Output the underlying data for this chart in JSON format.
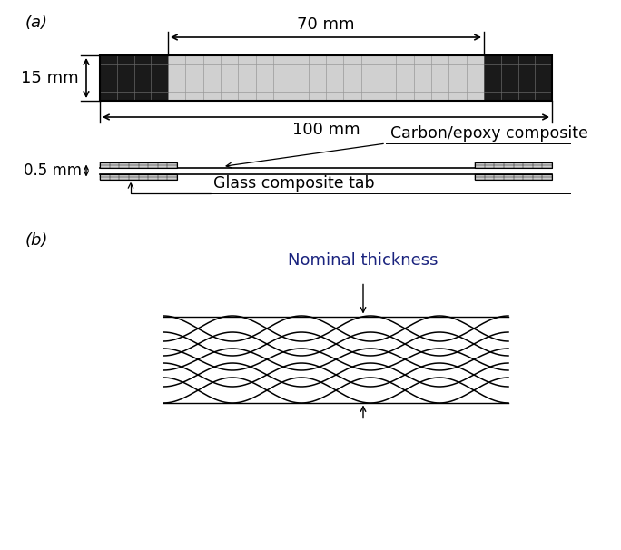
{
  "bg_color": "#ffffff",
  "label_a": "(a)",
  "label_b": "(b)",
  "dim_70mm": "70 mm",
  "dim_100mm": "100 mm",
  "dim_15mm": "15 mm",
  "dim_05mm": "0.5 mm",
  "label_carbon": "Carbon/epoxy composite",
  "label_glass": "Glass composite tab",
  "label_nominal": "Nominal thickness",
  "text_color_nominal": "#1a237e",
  "grid_color_body": "#999999",
  "grid_color_tab": "#666666",
  "tab_dark_color": "#1a1a1a",
  "body_gray_color": "#d0d0d0",
  "glass_tab_color": "#cccccc",
  "fontsize_label": 13,
  "fontsize_dim": 13
}
